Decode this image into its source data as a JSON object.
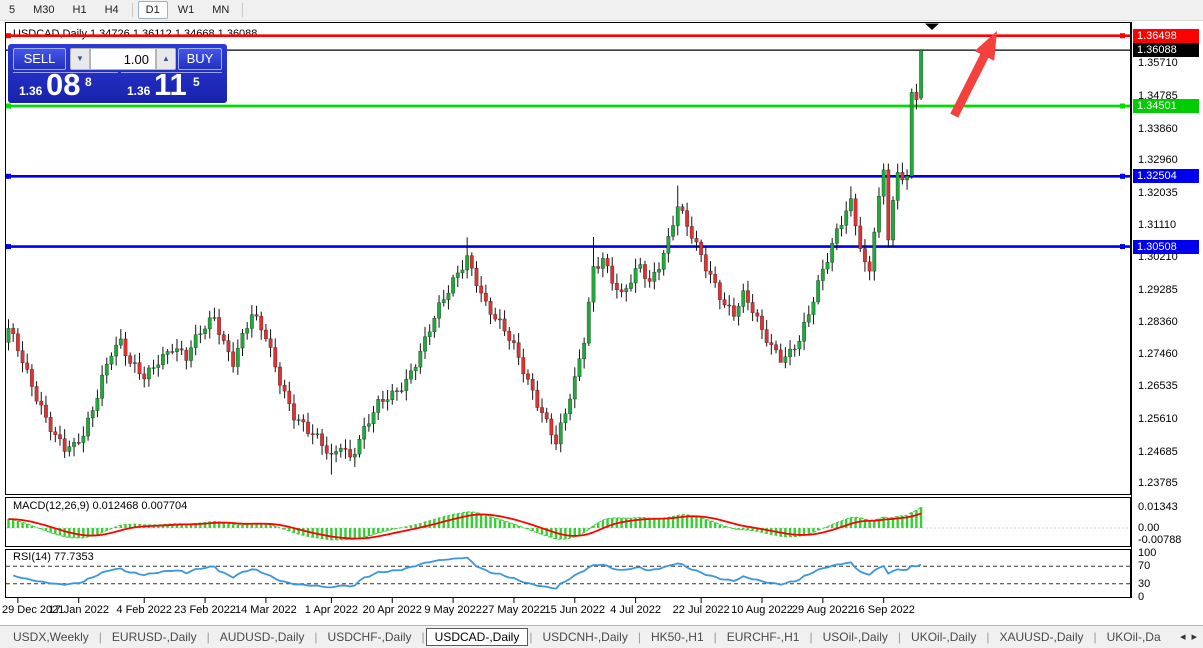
{
  "colors": {
    "bull": "#22a93c",
    "bear": "#dc3434",
    "wick": "#111111",
    "macd_hist": "#33cf33",
    "macd_signal": "#ff0000",
    "rsi_line": "#3a96dd",
    "line_red": "#ff0000",
    "line_green": "#00dd00",
    "line_blue": "#0000e8",
    "line_black": "#000000",
    "panel_blue": "#1f2cc0",
    "arrow_red": "#f4413e"
  },
  "toolbar": {
    "timeframes": [
      "5",
      "M30",
      "H1",
      "H4",
      "D1",
      "W1",
      "MN"
    ],
    "active": "D1"
  },
  "chart": {
    "title": "USDCAD,Daily 1.34726 1.36112 1.34668 1.36088",
    "symbol": "USDCAD",
    "period": "Daily"
  },
  "trade_panel": {
    "sell_label": "SELL",
    "buy_label": "BUY",
    "volume": "1.00",
    "sell_small": "1.36",
    "sell_big": "08",
    "sell_sup": "8",
    "buy_small": "1.36",
    "buy_big": "11",
    "buy_sup": "5",
    "spin_down": "▼",
    "spin_up": "▲"
  },
  "price_axis": {
    "ticks": [
      {
        "text": "1.35710",
        "price": 1.3571
      },
      {
        "text": "1.34785",
        "price": 1.34785
      },
      {
        "text": "1.33860",
        "price": 1.3386
      },
      {
        "text": "1.32960",
        "price": 1.3296
      },
      {
        "text": "1.32035",
        "price": 1.32035
      },
      {
        "text": "1.31110",
        "price": 1.3111
      },
      {
        "text": "1.30210",
        "price": 1.3021
      },
      {
        "text": "1.29285",
        "price": 1.29285
      },
      {
        "text": "1.28360",
        "price": 1.2836
      },
      {
        "text": "1.27460",
        "price": 1.2746
      },
      {
        "text": "1.26535",
        "price": 1.26535
      },
      {
        "text": "1.25610",
        "price": 1.2561
      },
      {
        "text": "1.24685",
        "price": 1.24685
      },
      {
        "text": "1.23785",
        "price": 1.23785
      }
    ],
    "tags": [
      {
        "text": "1.36498",
        "price": 1.36498,
        "bg": "#ff0000"
      },
      {
        "text": "1.36088",
        "price": 1.36088,
        "bg": "#000000"
      },
      {
        "text": "1.34501",
        "price": 1.34501,
        "bg": "#00cc00"
      },
      {
        "text": "1.32504",
        "price": 1.32504,
        "bg": "#0000ee"
      },
      {
        "text": "1.30508",
        "price": 1.30508,
        "bg": "#0000ee"
      }
    ]
  },
  "macd": {
    "label": "MACD(12,26,9) 0.012468 0.007704",
    "axis": [
      {
        "text": "0.01343",
        "value": 0.01343
      },
      {
        "text": "0.00",
        "value": 0.0
      },
      {
        "text": "-0.00788",
        "value": -0.00788
      }
    ]
  },
  "rsi": {
    "label": "RSI(14) 77.7353",
    "axis": [
      {
        "text": "100",
        "value": 100
      },
      {
        "text": "70",
        "value": 70
      },
      {
        "text": "30",
        "value": 30
      },
      {
        "text": "0",
        "value": 0
      }
    ],
    "levels": [
      70,
      30
    ]
  },
  "x_axis": {
    "labels": [
      {
        "text": "29 Dec 2021",
        "i": 2
      },
      {
        "text": "17 Jan 2022",
        "i": 15
      },
      {
        "text": "4 Feb 2022",
        "i": 29
      },
      {
        "text": "23 Feb 2022",
        "i": 42
      },
      {
        "text": "14 Mar 2022",
        "i": 55
      },
      {
        "text": "1 Apr 2022",
        "i": 69
      },
      {
        "text": "20 Apr 2022",
        "i": 82
      },
      {
        "text": "9 May 2022",
        "i": 95
      },
      {
        "text": "27 May 2022",
        "i": 108
      },
      {
        "text": "15 Jun 2022",
        "i": 121
      },
      {
        "text": "4 Jul 2022",
        "i": 134
      },
      {
        "text": "22 Jul 2022",
        "i": 148
      },
      {
        "text": "10 Aug 2022",
        "i": 161
      },
      {
        "text": "29 Aug 2022",
        "i": 174
      },
      {
        "text": "16 Sep 2022",
        "i": 187
      }
    ]
  },
  "tabs": {
    "items": [
      "USDX,Weekly",
      "EURUSD-,Daily",
      "AUDUSD-,Daily",
      "USDCHF-,Daily",
      "USDCAD-,Daily",
      "USDCNH-,Daily",
      "HK50-,H1",
      "EURCHF-,H1",
      "USOil-,Daily",
      "UKOil-,Daily",
      "XAUUSD-,Daily",
      "UKOil-,Da"
    ],
    "active": "USDCAD-,Daily",
    "scroll_left": "◂",
    "scroll_right": "▸"
  },
  "chart_data": {
    "type": "candlestick",
    "symbol": "USDCAD",
    "timeframe": "Daily",
    "x_range": [
      "29 Dec 2021",
      "Sep 2022"
    ],
    "ylim": [
      1.23785,
      1.37
    ],
    "candle_count": 196,
    "last_candle": {
      "open": 1.34726,
      "high": 1.36112,
      "low": 1.34668,
      "close": 1.36088
    },
    "price_anchors": [
      [
        0,
        1.2805
      ],
      [
        2,
        1.276
      ],
      [
        5,
        1.267
      ],
      [
        8,
        1.257
      ],
      [
        10,
        1.2505
      ],
      [
        12,
        1.2465
      ],
      [
        14,
        1.2472
      ],
      [
        16,
        1.252
      ],
      [
        18,
        1.26
      ],
      [
        20,
        1.269
      ],
      [
        22,
        1.2755
      ],
      [
        24,
        1.277
      ],
      [
        26,
        1.2705
      ],
      [
        29,
        1.268
      ],
      [
        32,
        1.274
      ],
      [
        35,
        1.277
      ],
      [
        38,
        1.2725
      ],
      [
        41,
        1.28
      ],
      [
        44,
        1.286
      ],
      [
        46,
        1.279
      ],
      [
        48,
        1.273
      ],
      [
        50,
        1.279
      ],
      [
        52,
        1.2845
      ],
      [
        55,
        1.279
      ],
      [
        58,
        1.268
      ],
      [
        61,
        1.258
      ],
      [
        64,
        1.252
      ],
      [
        67,
        1.2478
      ],
      [
        69,
        1.2448
      ],
      [
        71,
        1.25
      ],
      [
        73,
        1.2462
      ],
      [
        76,
        1.253
      ],
      [
        79,
        1.259
      ],
      [
        82,
        1.2625
      ],
      [
        85,
        1.268
      ],
      [
        88,
        1.276
      ],
      [
        91,
        1.284
      ],
      [
        94,
        1.2915
      ],
      [
        96,
        1.2975
      ],
      [
        98,
        1.303
      ],
      [
        100,
        1.2965
      ],
      [
        102,
        1.289
      ],
      [
        104,
        1.284
      ],
      [
        106,
        1.28
      ],
      [
        108,
        1.2758
      ],
      [
        110,
        1.2705
      ],
      [
        112,
        1.265
      ],
      [
        114,
        1.259
      ],
      [
        116,
        1.2525
      ],
      [
        117,
        1.2488
      ],
      [
        119,
        1.2565
      ],
      [
        121,
        1.266
      ],
      [
        123,
        1.279
      ],
      [
        125,
        1.3
      ],
      [
        127,
        1.303
      ],
      [
        129,
        1.2958
      ],
      [
        131,
        1.29
      ],
      [
        133,
        1.2942
      ],
      [
        135,
        1.299
      ],
      [
        137,
        1.2952
      ],
      [
        139,
        1.3012
      ],
      [
        141,
        1.308
      ],
      [
        143,
        1.3168
      ],
      [
        145,
        1.3098
      ],
      [
        147,
        1.304
      ],
      [
        149,
        1.299
      ],
      [
        151,
        1.295
      ],
      [
        153,
        1.29
      ],
      [
        155,
        1.2868
      ],
      [
        157,
        1.2908
      ],
      [
        159,
        1.2858
      ],
      [
        161,
        1.28
      ],
      [
        163,
        1.2768
      ],
      [
        165,
        1.2745
      ],
      [
        167,
        1.2762
      ],
      [
        169,
        1.2792
      ],
      [
        171,
        1.285
      ],
      [
        173,
        1.293
      ],
      [
        175,
        1.301
      ],
      [
        177,
        1.3098
      ],
      [
        179,
        1.3168
      ],
      [
        180,
        1.319
      ],
      [
        181,
        1.3128
      ],
      [
        182,
        1.3058
      ],
      [
        183,
        1.2995
      ],
      [
        184,
        1.2975
      ],
      [
        185,
        1.309
      ],
      [
        186,
        1.317
      ],
      [
        187,
        1.325
      ],
      [
        188,
        1.307
      ],
      [
        189,
        1.318
      ],
      [
        190,
        1.326
      ],
      [
        191,
        1.3245
      ],
      [
        192,
        1.3255
      ],
      [
        193,
        1.349
      ],
      [
        194,
        1.3473
      ],
      [
        195,
        1.3608
      ]
    ],
    "wick_overrides": {
      "12": {
        "low": 1.245
      },
      "69": {
        "low": 1.2403
      },
      "98": {
        "high": 1.3077
      },
      "125": {
        "high": 1.3078
      },
      "143": {
        "high": 1.3224
      },
      "165": {
        "low": 1.2727
      },
      "180": {
        "high": 1.3222
      },
      "184": {
        "low": 1.2955
      },
      "187": {
        "high": 1.3287
      },
      "188": {
        "low": 1.3048
      }
    },
    "texture": {
      "a1": 0.0012,
      "f1": 1.93,
      "a2": 0.0015,
      "f2": 0.47,
      "damp_after": 187,
      "damp": 0.25
    },
    "wick_texture": {
      "base": 0.0007,
      "amp": 0.0021
    },
    "hlines": [
      {
        "price": 1.36498,
        "color": "#ff0000",
        "width": 2.6
      },
      {
        "price": 1.36088,
        "color": "#000000",
        "width": 1.2
      },
      {
        "price": 1.34501,
        "color": "#00dd00",
        "width": 2.8
      },
      {
        "price": 1.32504,
        "color": "#0000e8",
        "width": 2.6
      },
      {
        "price": 1.30508,
        "color": "#0000e8",
        "width": 2.6
      }
    ],
    "indicators": [
      {
        "type": "MACD",
        "params": [
          12,
          26,
          9
        ],
        "current": [
          0.012468,
          0.007704
        ],
        "axis_max": 0.01343,
        "axis_min": -0.00788
      },
      {
        "type": "RSI",
        "params": [
          14
        ],
        "current": 77.7353,
        "levels": [
          70,
          30
        ]
      }
    ],
    "annotations": [
      {
        "type": "arrow",
        "color": "#f4413e",
        "note": "red up-right arrow near top right"
      },
      {
        "type": "bar-marker",
        "note": "black down triangle at top, x of last bars"
      }
    ]
  }
}
